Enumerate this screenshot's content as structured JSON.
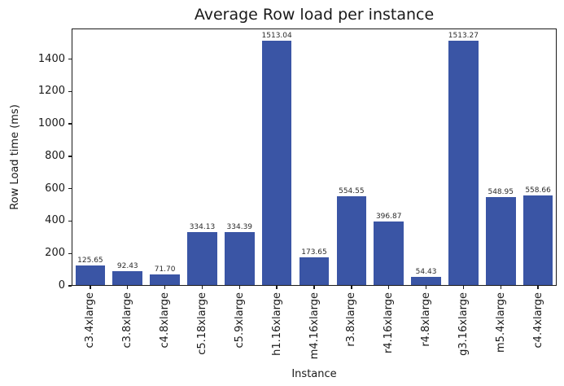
{
  "chart_data": {
    "type": "bar",
    "title": "Average Row load per instance",
    "xlabel": "Instance",
    "ylabel": "Row Load time (ms)",
    "categories": [
      "c3.4xlarge",
      "c3.8xlarge",
      "c4.8xlarge",
      "c5.18xlarge",
      "c5.9xlarge",
      "h1.16xlarge",
      "m4.16xlarge",
      "r3.8xlarge",
      "r4.16xlarge",
      "r4.8xlarge",
      "g3.16xlarge",
      "m5.4xlarge",
      "c4.4xlarge"
    ],
    "values": [
      125.65,
      92.43,
      71.7,
      334.13,
      334.39,
      1513.04,
      173.65,
      554.55,
      396.87,
      54.43,
      1513.27,
      548.95,
      558.66
    ],
    "value_labels": [
      "125.65",
      "92.43",
      "71.70",
      "334.13",
      "334.39",
      "1513.04",
      "173.65",
      "554.55",
      "396.87",
      "54.43",
      "1513.27",
      "548.95",
      "558.66"
    ],
    "yticks": [
      0,
      200,
      400,
      600,
      800,
      1000,
      1200,
      1400
    ],
    "ylim": [
      0,
      1589
    ],
    "bar_color": "#3a55a5",
    "grid": "off",
    "legend": "none"
  }
}
